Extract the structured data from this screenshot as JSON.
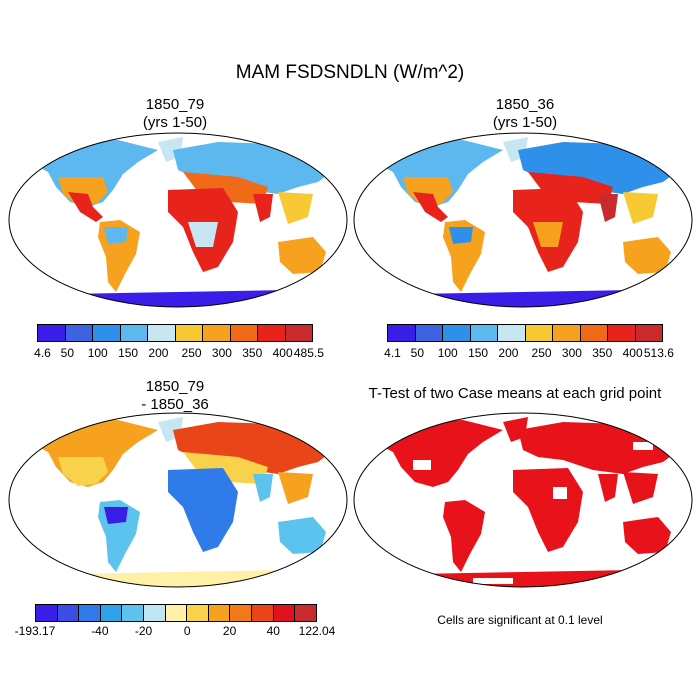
{
  "title": "MAM FSDSNDLN (W/m^2)",
  "panels": {
    "a": {
      "title": "1850_79",
      "subtitle": "(yrs 1-50)"
    },
    "b": {
      "title": "1850_36",
      "subtitle": "(yrs 1-50)"
    },
    "c": {
      "title": "1850_79",
      "subtitle": "- 1850_36"
    },
    "d": {
      "title": "T-Test of two Case means at each grid point"
    }
  },
  "colorbars": {
    "top_left": {
      "labels": [
        "4.6",
        "50",
        "100",
        "150",
        "200",
        "250",
        "300",
        "350",
        "400",
        "485.5"
      ],
      "colors": [
        "#3a1ee8",
        "#3d63e0",
        "#2f90ea",
        "#5cb8ee",
        "#c7e6f2",
        "#f7c935",
        "#f7a21e",
        "#f06a17",
        "#e8231b",
        "#c92a2e"
      ]
    },
    "top_right": {
      "labels": [
        "4.1",
        "50",
        "100",
        "150",
        "200",
        "250",
        "300",
        "350",
        "400",
        "513.6"
      ],
      "colors": [
        "#3a1ee8",
        "#3d63e0",
        "#2f90ea",
        "#5cb8ee",
        "#c7e6f2",
        "#f7c935",
        "#f7a21e",
        "#f06a17",
        "#e8231b",
        "#c92a2e"
      ]
    },
    "bottom_left": {
      "labels": [
        "-193.17",
        "-40",
        "-20",
        "0",
        "20",
        "40",
        "122.04"
      ],
      "colors": [
        "#3a1ee8",
        "#3a4ee6",
        "#2f7bea",
        "#2fa3ea",
        "#5cc2ee",
        "#bfe5f2",
        "#fff0a8",
        "#f9d24b",
        "#f7a21e",
        "#f07a17",
        "#ea4419",
        "#e0121b",
        "#c92a2e"
      ]
    }
  },
  "note": "Cells are significant at 0.1 level"
}
